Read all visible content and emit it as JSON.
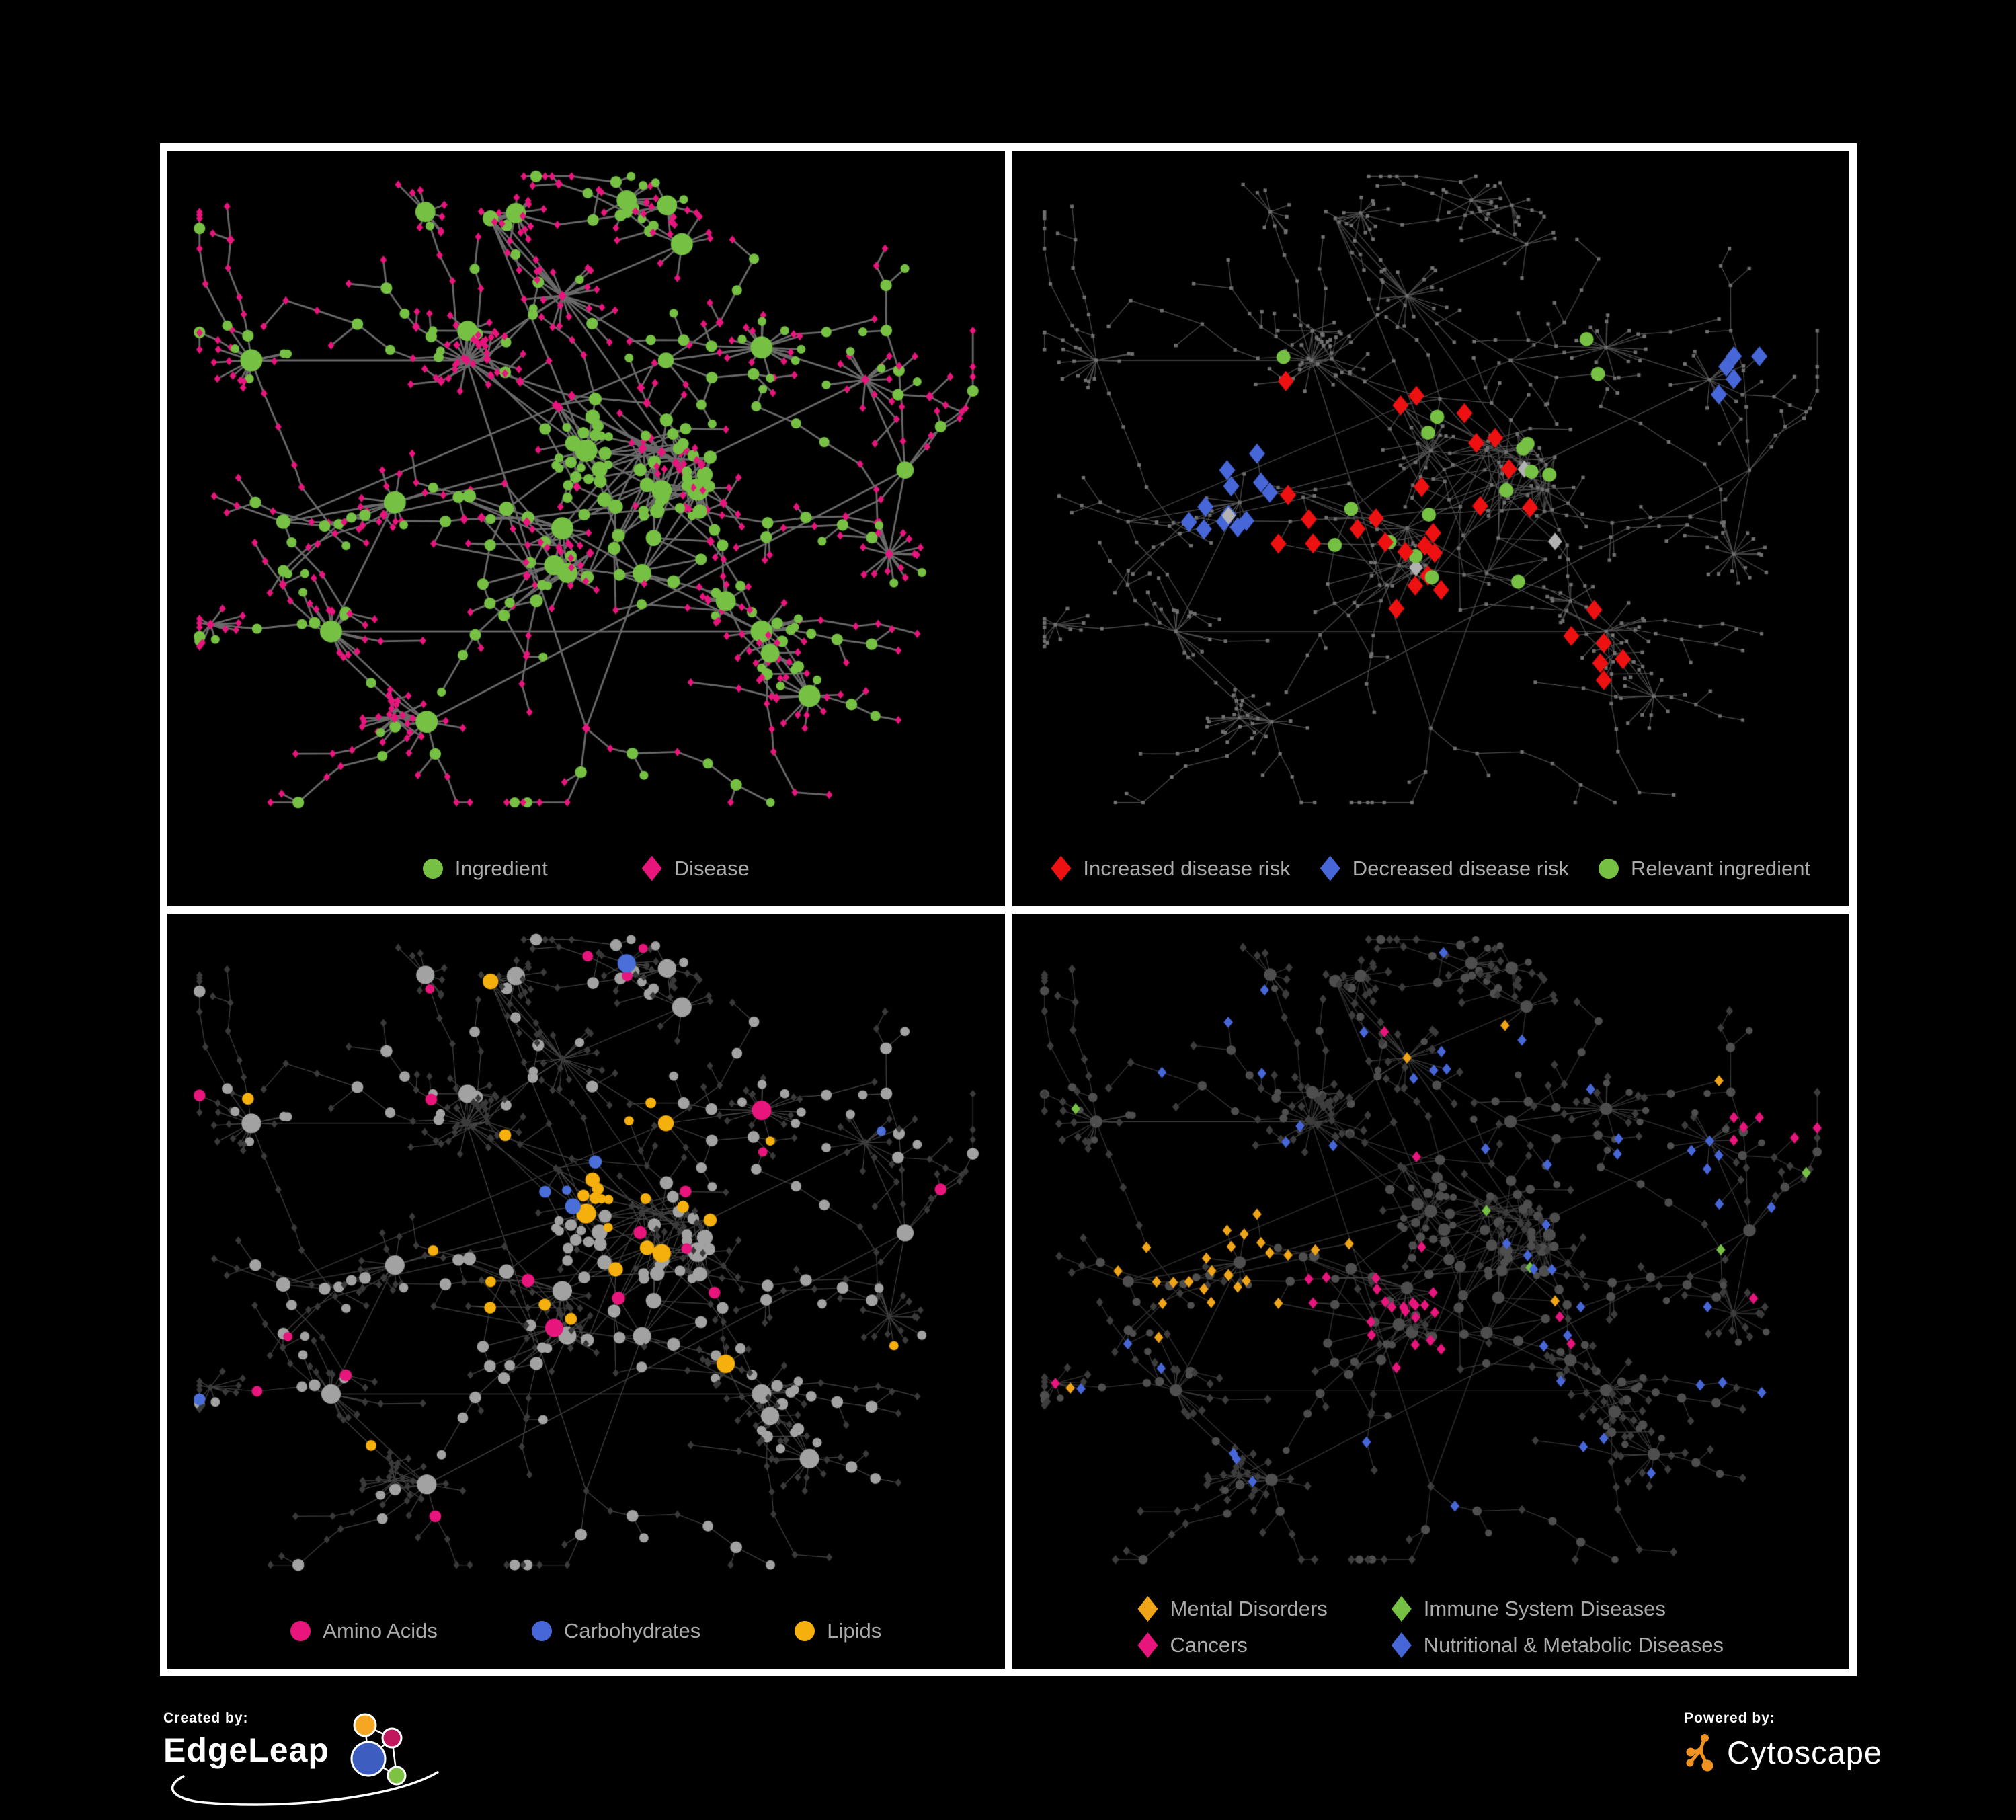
{
  "colors": {
    "background": "#000000",
    "frame": "#ffffff",
    "legend_text": "#ababab"
  },
  "panels": [
    {
      "name": "ingredient-disease-network",
      "legend": [
        {
          "shape": "circle",
          "color": "#76c043",
          "label": "Ingredient"
        },
        {
          "shape": "diamond",
          "color": "#e8157d",
          "label": "Disease"
        }
      ],
      "net": {
        "edge": "#6f6f6f",
        "edge_w": 2.8,
        "edge_alpha": 0.95,
        "ingredient": "#76c043",
        "disease": "#e8157d"
      }
    },
    {
      "name": "disease-risk-network",
      "legend": [
        {
          "shape": "diamond",
          "color": "#ee1111",
          "label": "Increased disease risk"
        },
        {
          "shape": "diamond",
          "color": "#4767d9",
          "label": "Decreased disease risk"
        },
        {
          "shape": "circle",
          "color": "#76c043",
          "label": "Relevant ingredient"
        }
      ],
      "net": {
        "edge": "#5e5e5e",
        "edge_w": 1.3,
        "edge_alpha": 0.8,
        "base": "#6f6f6f",
        "increased": "#ee1111",
        "decreased": "#4767d9",
        "neutral": "#b2b2b2",
        "relevant": "#76c043"
      }
    },
    {
      "name": "nutrient-groups-network",
      "legend": [
        {
          "shape": "circle",
          "color": "#e8157d",
          "label": "Amino Acids"
        },
        {
          "shape": "circle",
          "color": "#4767d9",
          "label": "Carbohydrates"
        },
        {
          "shape": "circle",
          "color": "#f5b00d",
          "label": "Lipids"
        }
      ],
      "net": {
        "edge": "#8a8a8a",
        "edge_w": 1.2,
        "edge_alpha": 0.5,
        "circle": "#a2a2a2",
        "diamond": "#3a3a3a",
        "amino": "#e8157d",
        "carbs": "#4a6fd8",
        "lipids": "#f5b00d"
      }
    },
    {
      "name": "disease-categories-network",
      "legend": [
        {
          "shape": "diamond",
          "color": "#f0a418",
          "label": "Mental Disorders"
        },
        {
          "shape": "diamond",
          "color": "#76c043",
          "label": "Immune System Diseases"
        },
        {
          "shape": "diamond",
          "color": "#e8157d",
          "label": "Cancers"
        },
        {
          "shape": "diamond",
          "color": "#4767d9",
          "label": "Nutritional & Metabolic Diseases"
        }
      ],
      "net": {
        "edge": "#707070",
        "edge_w": 1.1,
        "edge_alpha": 0.55,
        "circle": "#4e4e4e",
        "diamond": "#3c3c3c",
        "mental": "#f0a418",
        "immune": "#76c043",
        "cancers": "#e8157d",
        "nutritional": "#4767d9"
      }
    }
  ],
  "branding": {
    "created_by": "Created by:",
    "creator": "EdgeLeap",
    "powered_by": "Powered by:",
    "engine": "Cytoscape",
    "cytoscape_orange": "#f19321",
    "edgeleap_colors": {
      "orange": "#f5a623",
      "magenta": "#c0175d",
      "blue": "#3d5ec0",
      "green": "#7dc242"
    }
  }
}
